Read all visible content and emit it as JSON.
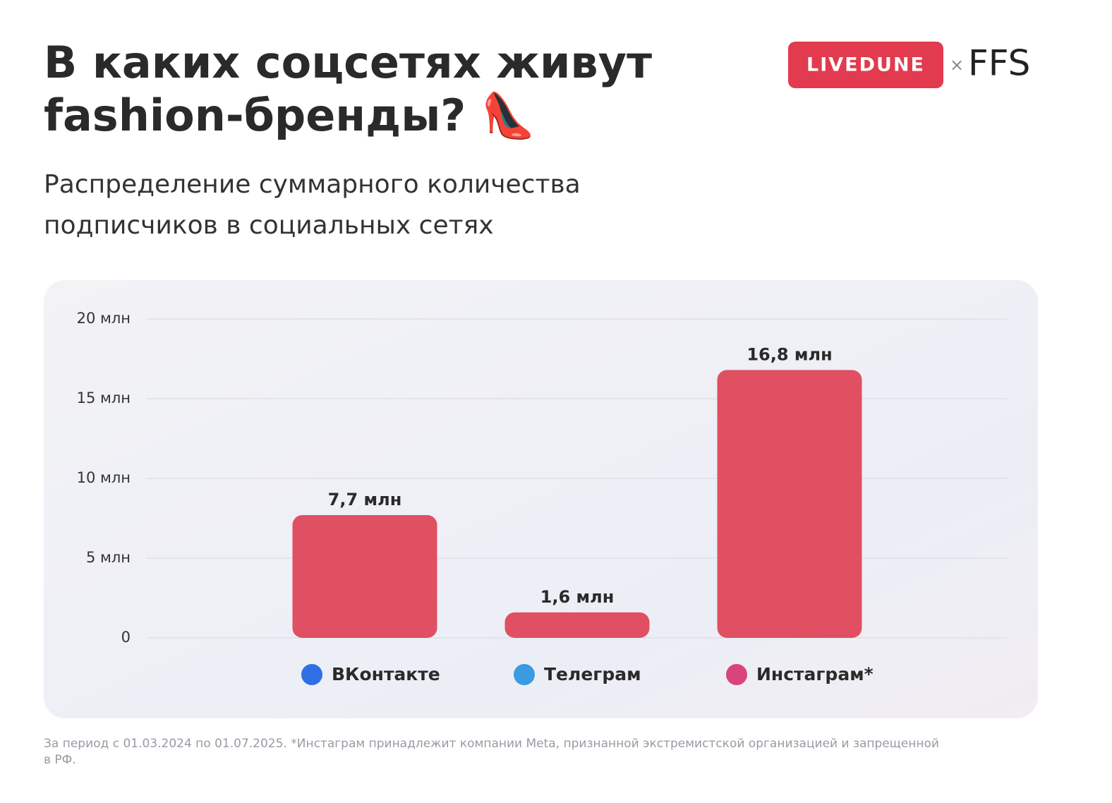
{
  "chart_data": {
    "type": "bar",
    "title": [
      "В каких соцсетях живут",
      "fashion-бренды? 👠"
    ],
    "subtitle": [
      "Распределение суммарного количества",
      "подписчиков в социальных сетях"
    ],
    "logo": {
      "brand": "LIVEDUNE",
      "separator": "×",
      "partner": "FFS"
    },
    "categories": [
      "ВКонтакте",
      "Телеграм",
      "Инстаграм*"
    ],
    "values": [
      7.7,
      1.6,
      16.8
    ],
    "value_labels": [
      "7,7 млн",
      "1,6 млн",
      "16,8 млн"
    ],
    "color": "#e05062",
    "ylim": [
      0,
      20
    ],
    "yticks": [
      0,
      {
        "value": 5,
        "label": "5 млн"
      },
      {
        "value": 10,
        "label": "10 млн"
      },
      {
        "value": 15,
        "label": "15 млн"
      },
      {
        "value": 20,
        "label": "20 млн"
      }
    ],
    "grid": true,
    "footnote": [
      "За период с 01.03.2024 по 01.07.2025. *Инстаграм принадлежит компании Meta, признанной экстремистской организацией и запрещенной",
      "в РФ."
    ]
  }
}
